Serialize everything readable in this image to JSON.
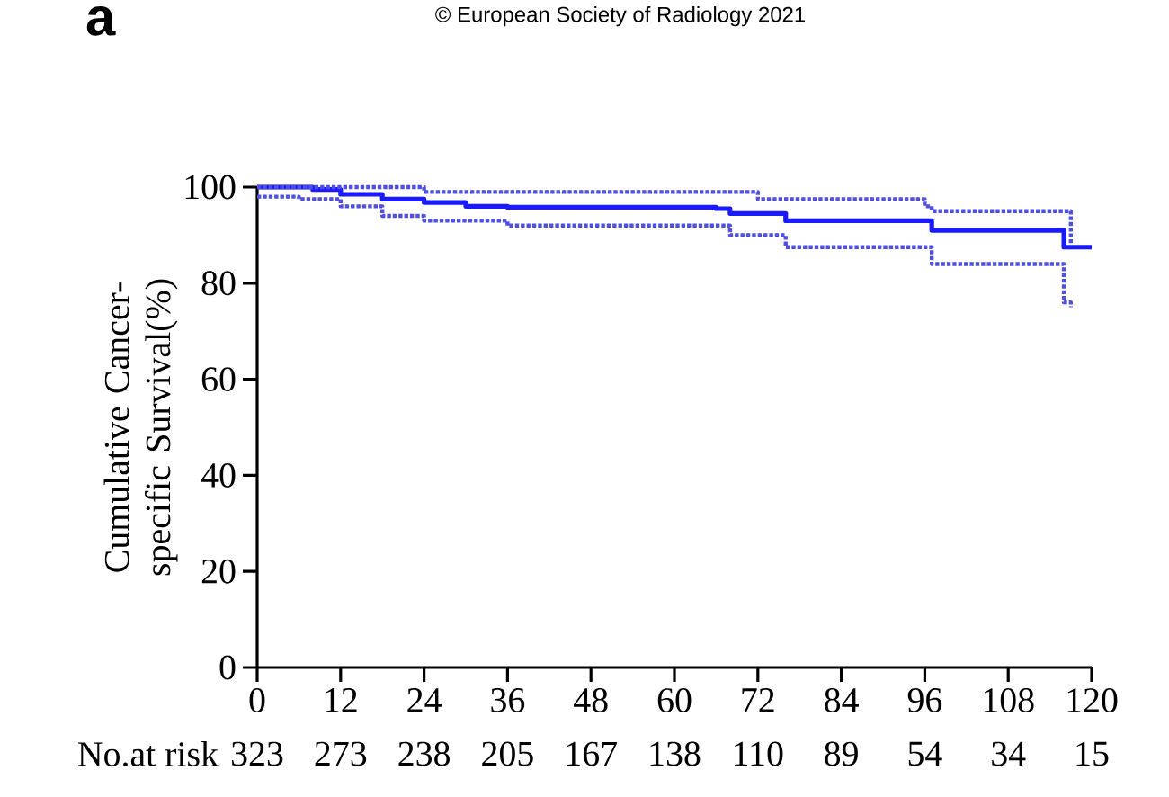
{
  "chart_data": {
    "type": "step",
    "title": "a",
    "ylabel": "Cumulative Cancer-specific Survival(%)",
    "xlim": [
      0,
      120
    ],
    "ylim": [
      0,
      100
    ],
    "xticks": [
      0,
      12,
      24,
      36,
      48,
      60,
      72,
      84,
      96,
      108,
      120
    ],
    "yticks": [
      0,
      20,
      40,
      60,
      80,
      100
    ],
    "grid": false,
    "annotations": [
      "© European Society of Radiology 2021",
      "No.at risk",
      "323",
      "273",
      "238",
      "205",
      "167",
      "138",
      "110",
      "89",
      "54",
      "34",
      "15"
    ],
    "series": [
      {
        "color": "#1a1aff",
        "line_style": "solid",
        "x": [
          0,
          6,
          8,
          12,
          18,
          24,
          30,
          36,
          66,
          68,
          72,
          76,
          96,
          97,
          115,
          116,
          120
        ],
        "values": [
          100,
          100,
          99.5,
          98.5,
          97.5,
          96.8,
          96,
          95.8,
          95.5,
          94.5,
          94.5,
          93,
          93,
          91,
          91,
          87.5,
          87.5
        ]
      },
      {
        "color": "#5050e0",
        "line_style": "dotted",
        "x": [
          0,
          24,
          66,
          72,
          96,
          97,
          116,
          117
        ],
        "values": [
          100,
          99,
          99,
          97.5,
          96,
          95,
          95,
          88
        ]
      },
      {
        "color": "#5050e0",
        "line_style": "dotted",
        "x": [
          0,
          6,
          12,
          18,
          24,
          36,
          66,
          68,
          72,
          76,
          96,
          97,
          114,
          116,
          117
        ],
        "values": [
          98,
          97.5,
          96,
          94,
          93,
          92,
          92,
          90,
          90,
          87.5,
          87.5,
          84,
          84,
          76,
          75
        ]
      }
    ]
  }
}
